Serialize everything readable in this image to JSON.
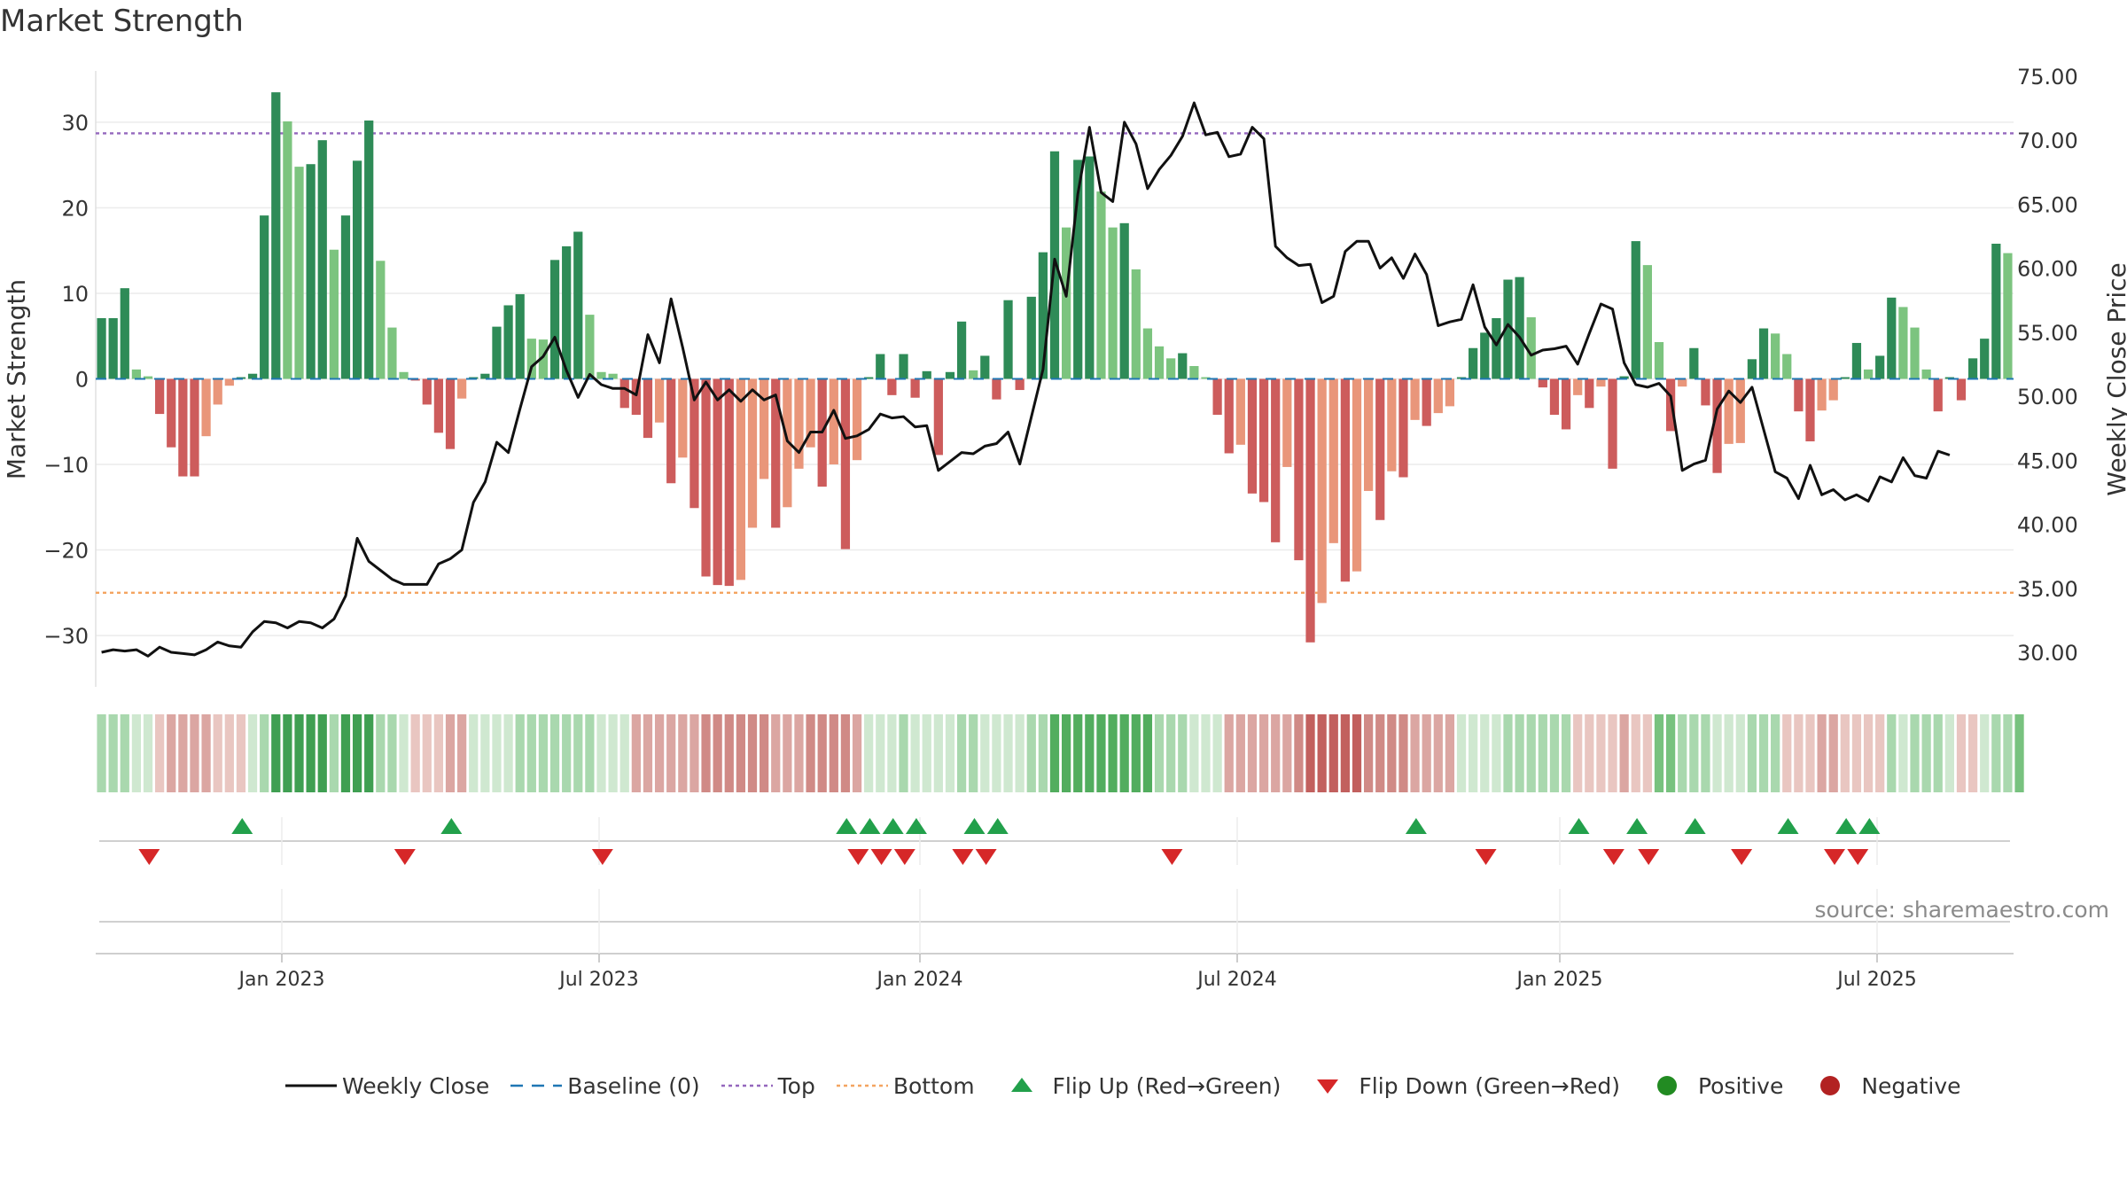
{
  "title": "Market Strength",
  "source": "source: sharemaestro.com",
  "colors": {
    "dark_green": "#2e8b57",
    "light_green": "#7cc47f",
    "dark_red": "#cd5c5c",
    "light_red": "#e9967a",
    "line": "#111111",
    "baseline": "#1f77b4",
    "top_line": "#9467bd",
    "bottom_line": "#f4a460",
    "flip_up": "#22a04b",
    "flip_down": "#d62728",
    "positive": "#228b22",
    "negative": "#b22222"
  },
  "legend": [
    {
      "label": "Weekly Close",
      "kind": "line"
    },
    {
      "label": "Baseline (0)",
      "kind": "baseline"
    },
    {
      "label": "Top",
      "kind": "top"
    },
    {
      "label": "Bottom",
      "kind": "bottom"
    },
    {
      "label": "Flip Up (Red→Green)",
      "kind": "up"
    },
    {
      "label": "Flip Down (Green→Red)",
      "kind": "down"
    },
    {
      "label": "Positive",
      "kind": "pos"
    },
    {
      "label": "Negative",
      "kind": "neg"
    }
  ],
  "chart_data": {
    "type": "bar",
    "title": "Market Strength",
    "ylabel": "Market Strength",
    "y2label": "Weekly Close Price",
    "ylim": [
      -36,
      36
    ],
    "y2lim": [
      26.5,
      74.5
    ],
    "yticks": [
      -30,
      -20,
      -10,
      0,
      10,
      20,
      30
    ],
    "ytick_labels": [
      "−30",
      "−20",
      "−10",
      "0",
      "10",
      "20",
      "30"
    ],
    "y2ticks": [
      "30.00",
      "35.00",
      "40.00",
      "45.00",
      "50.00",
      "55.00",
      "60.00",
      "65.00",
      "70.00",
      "75.00"
    ],
    "xticks": [
      "Jan 2023",
      "Jul 2023",
      "Jan 2024",
      "Jul 2024",
      "Jan 2025",
      "Jul 2025"
    ],
    "grid": true,
    "legend_position": "bottom",
    "top_line": 28.7,
    "bottom_line": -25,
    "baseline": 0,
    "series": [
      {
        "name": "Weekly Close",
        "type": "line"
      },
      {
        "name": "Market Strength",
        "type": "bar"
      }
    ],
    "bars": [
      7.1,
      7.1,
      10.6,
      1.1,
      0.3,
      -4.1,
      -8,
      -11.4,
      -11.4,
      -6.7,
      -3,
      -0.8,
      0.2,
      0.6,
      19.1,
      33.5,
      30.1,
      24.8,
      25.1,
      27.9,
      15.1,
      19.1,
      25.5,
      30.2,
      13.8,
      6.0,
      0.8,
      -0.2,
      -3.0,
      -6.3,
      -8.2,
      -2.3,
      0.2,
      0.6,
      6.1,
      8.6,
      9.9,
      4.7,
      4.6,
      13.9,
      15.5,
      17.2,
      7.5,
      0.8,
      0.6,
      -3.4,
      -4.2,
      -6.9,
      -5.1,
      -12.2,
      -9.2,
      -15.1,
      -23.1,
      -24.1,
      -24.2,
      -23.5,
      -17.4,
      -11.7,
      -17.4,
      -15.0,
      -10.5,
      -8.0,
      -12.6,
      -10.0,
      -19.9,
      -9.5,
      0.2,
      2.9,
      -1.9,
      2.9,
      -2.2,
      0.9,
      -8.9,
      0.8,
      6.7,
      1.0,
      2.7,
      -2.4,
      9.2,
      -1.3,
      9.6,
      14.8,
      26.6,
      17.7,
      25.6,
      26.0,
      21.9,
      17.7,
      18.2,
      12.8,
      5.9,
      3.8,
      2.4,
      3.0,
      1.5,
      0.2,
      -4.2,
      -8.7,
      -7.7,
      -13.4,
      -14.4,
      -19.1,
      -10.3,
      -21.2,
      -30.8,
      -26.2,
      -19.2,
      -23.7,
      -22.5,
      -13.1,
      -16.5,
      -10.8,
      -11.5,
      -4.8,
      -5.5,
      -4.0,
      -3.2,
      0.2,
      3.6,
      5.4,
      7.1,
      11.6,
      11.9,
      7.2,
      -1.0,
      -4.2,
      -5.9,
      -1.9,
      -3.4,
      -0.9,
      -10.5,
      0.3,
      16.1,
      13.3,
      4.3,
      -6.1,
      -0.9,
      3.6,
      -3.1,
      -11.0,
      -7.6,
      -7.5,
      2.3,
      5.9,
      5.3,
      2.9,
      -3.8,
      -7.3,
      -3.7,
      -2.5,
      0.2,
      4.2,
      1.1,
      2.7,
      9.5,
      8.4,
      6.0,
      1.1,
      -3.8,
      0.2,
      -2.5,
      2.4,
      4.7,
      15.8,
      14.7
    ],
    "close": [
      30.0,
      30.2,
      30.1,
      30.2,
      29.7,
      30.4,
      30.0,
      29.9,
      29.8,
      30.2,
      30.8,
      30.5,
      30.4,
      31.6,
      32.4,
      32.3,
      31.9,
      32.4,
      32.3,
      31.9,
      32.6,
      34.4,
      38.9,
      37.1,
      36.4,
      35.7,
      35.3,
      35.3,
      35.3,
      36.9,
      37.3,
      38.0,
      41.7,
      43.3,
      46.4,
      45.6,
      49.0,
      52.3,
      53.1,
      54.6,
      52.0,
      49.9,
      51.7,
      50.9,
      50.6,
      50.6,
      50.1,
      54.8,
      52.6,
      57.6,
      53.8,
      49.7,
      51.1,
      49.7,
      50.5,
      49.6,
      50.5,
      49.7,
      50.1,
      46.5,
      45.6,
      47.2,
      47.2,
      48.9,
      46.7,
      46.9,
      47.4,
      48.6,
      48.3,
      48.4,
      47.6,
      47.7,
      44.2,
      44.9,
      45.6,
      45.5,
      46.1,
      46.3,
      47.2,
      44.7,
      48.4,
      52.1,
      60.7,
      57.8,
      65.8,
      71.0,
      65.9,
      65.2,
      71.4,
      69.7,
      66.2,
      67.7,
      68.8,
      70.3,
      72.9,
      70.4,
      70.6,
      68.7,
      68.9,
      71.0,
      70.1,
      61.7,
      60.8,
      60.2,
      60.3,
      57.3,
      57.8,
      61.3,
      62.1,
      62.1,
      60.0,
      60.8,
      59.2,
      61.1,
      59.5,
      55.5,
      55.8,
      56.0,
      58.7,
      55.4,
      54.0,
      55.6,
      54.6,
      53.2,
      53.6,
      53.7,
      53.9,
      52.5,
      54.9,
      57.2,
      56.8,
      52.6,
      50.9,
      50.7,
      51.0,
      50.0,
      44.2,
      44.7,
      45.0,
      49.0,
      50.4,
      49.5,
      50.7,
      47.4,
      44.1,
      43.6,
      42.0,
      44.6,
      42.3,
      42.7,
      41.9,
      42.3,
      41.8,
      43.7,
      43.3,
      45.2,
      43.8,
      43.6,
      45.7,
      45.4
    ],
    "strip": [
      2,
      2,
      2,
      1,
      1,
      3,
      4,
      4,
      4,
      4,
      3,
      3,
      3,
      1,
      2,
      7,
      7,
      7,
      7,
      7,
      2,
      7,
      7,
      7,
      2,
      2,
      1,
      3,
      3,
      3,
      4,
      4,
      1,
      1,
      1,
      1,
      2,
      2,
      2,
      2,
      2,
      2,
      2,
      1,
      1,
      1,
      4,
      4,
      4,
      4,
      4,
      4,
      8,
      8,
      8,
      8,
      8,
      8,
      4,
      4,
      4,
      8,
      8,
      8,
      8,
      4,
      1,
      1,
      1,
      2,
      1,
      1,
      1,
      1,
      2,
      2,
      1,
      1,
      1,
      1,
      2,
      2,
      6,
      6,
      6,
      6,
      6,
      6,
      6,
      6,
      6,
      2,
      2,
      2,
      1,
      1,
      1,
      4,
      4,
      4,
      4,
      4,
      4,
      8,
      9,
      9,
      9,
      9,
      9,
      8,
      8,
      8,
      8,
      4,
      4,
      4,
      4,
      1,
      1,
      1,
      1,
      2,
      2,
      2,
      2,
      2,
      2,
      3,
      3,
      3,
      3,
      4,
      3,
      3,
      5,
      5,
      2,
      2,
      2,
      1,
      1,
      1,
      2,
      2,
      2,
      3,
      3,
      3,
      4,
      4,
      3,
      3,
      3,
      3,
      2,
      1,
      2,
      2,
      2,
      1,
      3,
      3,
      1,
      2,
      2,
      5
    ],
    "flip_up_index": [
      12,
      30,
      64,
      66,
      68,
      70,
      75,
      77,
      113,
      127,
      132,
      137,
      145,
      150,
      152
    ],
    "flip_down_index": [
      4,
      26,
      43,
      65,
      67,
      69,
      74,
      76,
      92,
      119,
      130,
      133,
      141,
      149,
      151
    ],
    "signal_series": [
      "Positive",
      "Negative"
    ]
  }
}
